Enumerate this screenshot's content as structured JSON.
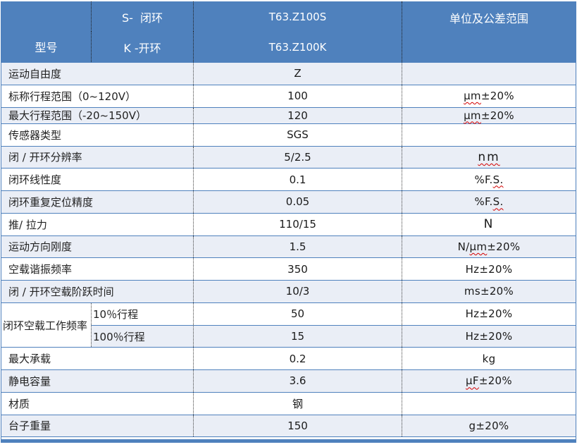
{
  "table": {
    "header": {
      "model_label": "型号",
      "variant_top": "S-  闭环",
      "variant_bottom": "K -开环",
      "part_number_top": "T63.Z100S",
      "part_number_bottom": "T63.Z100K",
      "units_label": "单位及公差范围"
    },
    "colors": {
      "header_bg": "#4f81bd",
      "header_text": "#ffffff",
      "band_bg": "#eaeef6",
      "grid_line_blue": "#4f81bd",
      "dotted_line": "#404040",
      "squiggle_red": "#d40000"
    },
    "rows": [
      {
        "type": "simple",
        "label": "运动自由度",
        "value": "Z",
        "u1": "",
        "u2": "",
        "u3": "",
        "shaded": true
      },
      {
        "type": "simple",
        "label": "标称行程范围（0~120V）",
        "value": "100",
        "u1": "",
        "u2": "μm",
        "u3": "±20%",
        "shaded": false
      },
      {
        "type": "simple",
        "label": "最大行程范围（-20~150V）",
        "value": "120",
        "u1": "",
        "u2": "μm",
        "u3": "±20%",
        "shaded": true,
        "short": true
      },
      {
        "type": "simple",
        "label": "传感器类型",
        "value": "SGS",
        "u1": "",
        "u2": "",
        "u3": "",
        "shaded": false
      },
      {
        "type": "simple",
        "label": "闭 / 开环分辨率",
        "value": "5/2.5",
        "u1": "",
        "u2": "nm",
        "u3": "",
        "shaded": true,
        "wide": true
      },
      {
        "type": "simple",
        "label": "闭环线性度",
        "value": "0.1",
        "u1": "%F.",
        "u2": "S.",
        "u3": "",
        "shaded": false
      },
      {
        "type": "simple",
        "label": "闭环重复定位精度",
        "value": "0.05",
        "u1": "%F.",
        "u2": "S.",
        "u3": "",
        "shaded": true
      },
      {
        "type": "simple",
        "label": "推/ 拉力",
        "value": "110/15",
        "u1": "N",
        "u2": "",
        "u3": "",
        "shaded": false,
        "wide": true
      },
      {
        "type": "simple",
        "label": "运动方向刚度",
        "value": "1.5",
        "u1": "N/",
        "u2": "μm",
        "u3": "±20%",
        "shaded": true
      },
      {
        "type": "simple",
        "label": "空载谐振频率",
        "value": "350",
        "u1": "Hz±20%",
        "u2": "",
        "u3": "",
        "shaded": false
      },
      {
        "type": "simple",
        "label": "闭 / 开环空载阶跃时间",
        "value": "10/3",
        "u1": "ms±20%",
        "u2": "",
        "u3": "",
        "shaded": true
      },
      {
        "type": "group",
        "label": "闭环空载工作频率",
        "sub": [
          {
            "sublabel": "10％行程",
            "value": "50",
            "u1": "Hz±20%",
            "u2": "",
            "u3": "",
            "shaded": false
          },
          {
            "sublabel": "100％行程",
            "value": "15",
            "u1": "Hz±20%",
            "u2": "",
            "u3": "",
            "shaded": true
          }
        ]
      },
      {
        "type": "simple",
        "label": "最大承载",
        "value": "0.2",
        "u1": "kg",
        "u2": "",
        "u3": "",
        "shaded": false
      },
      {
        "type": "simple",
        "label": "静电容量",
        "value": "3.6",
        "u1": "",
        "u2": "μF",
        "u3": "±20%",
        "shaded": true
      },
      {
        "type": "simple",
        "label": "材质",
        "value": "钢",
        "u1": "",
        "u2": "",
        "u3": "",
        "shaded": false
      },
      {
        "type": "simple",
        "label": "台子重量",
        "value": "150",
        "u1": "g±20%",
        "u2": "",
        "u3": "",
        "shaded": true
      }
    ]
  }
}
